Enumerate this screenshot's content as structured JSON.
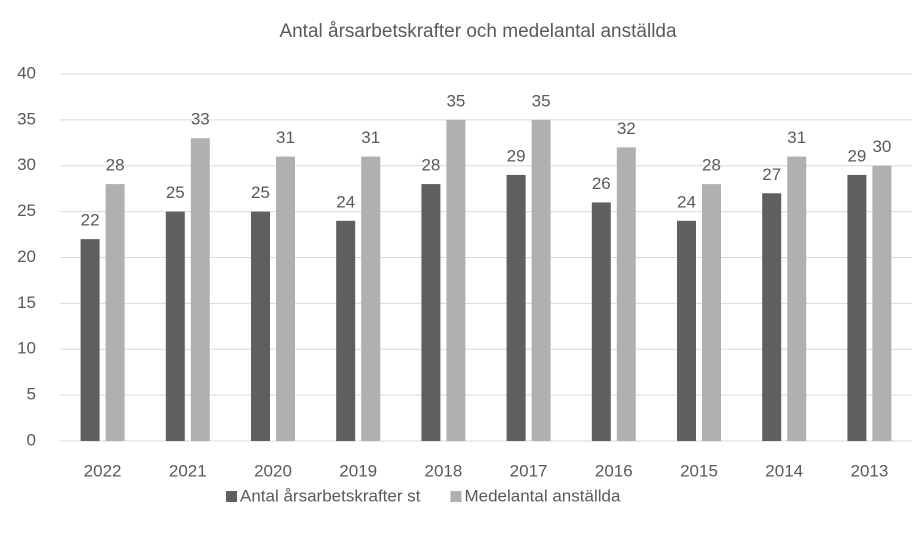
{
  "chart_data": {
    "type": "bar",
    "title": "Antal årsarbetskrafter och medelantal anställda",
    "categories": [
      "2022",
      "2021",
      "2020",
      "2019",
      "2018",
      "2017",
      "2016",
      "2015",
      "2014",
      "2013"
    ],
    "series": [
      {
        "name": "Antal årsarbetskrafter st",
        "color": "#5f5f5f",
        "values": [
          22,
          25,
          25,
          24,
          28,
          29,
          26,
          24,
          27,
          29
        ]
      },
      {
        "name": "Medelantal anställda",
        "color": "#b0b0b0",
        "values": [
          28,
          33,
          31,
          31,
          35,
          35,
          32,
          28,
          31,
          30
        ]
      }
    ],
    "ylim": [
      0,
      40
    ],
    "yticks": [
      0,
      5,
      10,
      15,
      20,
      25,
      30,
      35,
      40
    ],
    "grid": true,
    "legend": "bottom"
  }
}
